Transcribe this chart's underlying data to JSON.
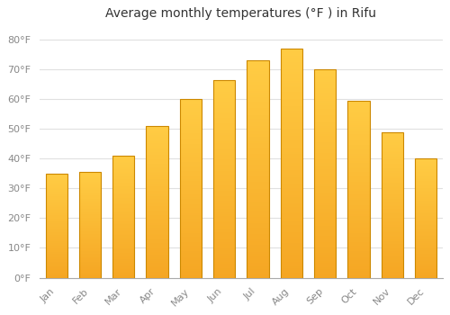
{
  "title": "Average monthly temperatures (°F ) in Rifu",
  "months": [
    "Jan",
    "Feb",
    "Mar",
    "Apr",
    "May",
    "Jun",
    "Jul",
    "Aug",
    "Sep",
    "Oct",
    "Nov",
    "Dec"
  ],
  "values": [
    35,
    35.5,
    41,
    51,
    60,
    66.5,
    73,
    77,
    70,
    59.5,
    49,
    40
  ],
  "bar_color_top": "#FFCC44",
  "bar_color_bottom": "#F5A623",
  "bar_edge_color": "#CC8800",
  "background_color": "#ffffff",
  "plot_bg_color": "#ffffff",
  "ylim": [
    0,
    85
  ],
  "yticks": [
    0,
    10,
    20,
    30,
    40,
    50,
    60,
    70,
    80
  ],
  "ytick_labels": [
    "0°F",
    "10°F",
    "20°F",
    "30°F",
    "40°F",
    "50°F",
    "60°F",
    "70°F",
    "80°F"
  ],
  "grid_color": "#e0e0e0",
  "title_fontsize": 10,
  "tick_fontsize": 8,
  "tick_color": "#888888",
  "bar_width": 0.65
}
